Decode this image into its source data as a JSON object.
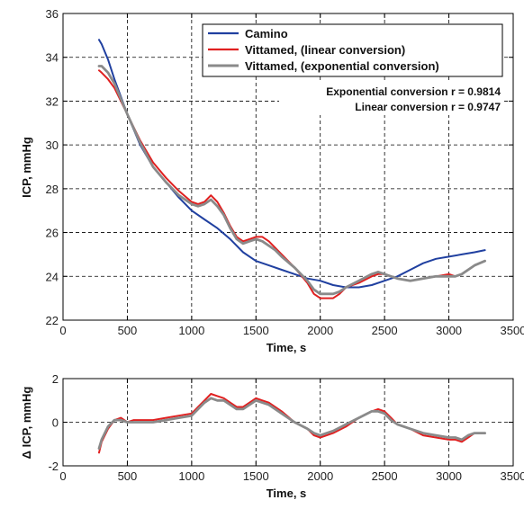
{
  "chart_data": [
    {
      "type": "line",
      "xlabel": "Time, s",
      "ylabel": "ICP, mmHg",
      "xlim": [
        0,
        3500
      ],
      "ylim": [
        22,
        36
      ],
      "xticks": [
        0,
        500,
        1000,
        1500,
        2000,
        2500,
        3000,
        3500
      ],
      "yticks": [
        22,
        24,
        26,
        28,
        30,
        32,
        34,
        36
      ],
      "grid": true,
      "legend_position": "top-right",
      "annotations": [
        "Exponential conversion r = 0.9814",
        "Linear conversion r = 0.9747"
      ],
      "series": [
        {
          "name": "Camino",
          "color": "#2040a0",
          "x": [
            280,
            300,
            350,
            400,
            450,
            500,
            600,
            700,
            800,
            900,
            1000,
            1100,
            1200,
            1300,
            1400,
            1500,
            1600,
            1700,
            1800,
            1900,
            2000,
            2100,
            2200,
            2300,
            2400,
            2500,
            2600,
            2700,
            2800,
            2900,
            3000,
            3100,
            3200,
            3280
          ],
          "y": [
            34.8,
            34.6,
            33.9,
            33.0,
            32.2,
            31.4,
            30.0,
            29.0,
            28.3,
            27.6,
            27.0,
            26.6,
            26.2,
            25.7,
            25.1,
            24.7,
            24.5,
            24.3,
            24.1,
            23.9,
            23.8,
            23.6,
            23.5,
            23.5,
            23.6,
            23.8,
            24.0,
            24.3,
            24.6,
            24.8,
            24.9,
            25.0,
            25.1,
            25.2
          ]
        },
        {
          "name": "Vittamed, (linear conversion)",
          "color": "#e02020",
          "x": [
            280,
            300,
            350,
            400,
            450,
            500,
            600,
            700,
            800,
            900,
            1000,
            1050,
            1100,
            1150,
            1200,
            1250,
            1300,
            1350,
            1400,
            1450,
            1500,
            1550,
            1600,
            1650,
            1700,
            1800,
            1900,
            1950,
            2000,
            2050,
            2100,
            2150,
            2200,
            2300,
            2400,
            2450,
            2500,
            2550,
            2600,
            2700,
            2800,
            2900,
            3000,
            3050,
            3100,
            3200,
            3280
          ],
          "y": [
            33.4,
            33.3,
            33.0,
            32.6,
            32.0,
            31.4,
            30.2,
            29.2,
            28.5,
            27.9,
            27.4,
            27.3,
            27.4,
            27.7,
            27.4,
            26.9,
            26.3,
            25.8,
            25.6,
            25.7,
            25.8,
            25.8,
            25.6,
            25.3,
            25.0,
            24.4,
            23.7,
            23.2,
            23.0,
            23.0,
            23.0,
            23.2,
            23.5,
            23.7,
            24.0,
            24.1,
            24.1,
            24.0,
            23.9,
            23.8,
            23.9,
            24.0,
            24.1,
            24.0,
            24.1,
            24.5,
            24.7
          ]
        },
        {
          "name": "Vittamed, (exponential conversion)",
          "color": "#8a8a8a",
          "x": [
            280,
            300,
            350,
            400,
            450,
            500,
            600,
            700,
            800,
            900,
            1000,
            1050,
            1100,
            1150,
            1200,
            1250,
            1300,
            1350,
            1400,
            1450,
            1500,
            1550,
            1600,
            1650,
            1700,
            1800,
            1900,
            1950,
            2000,
            2050,
            2100,
            2150,
            2200,
            2300,
            2400,
            2450,
            2500,
            2550,
            2600,
            2700,
            2800,
            2900,
            3000,
            3050,
            3100,
            3200,
            3280
          ],
          "y": [
            33.6,
            33.6,
            33.3,
            32.8,
            32.1,
            31.4,
            30.1,
            29.0,
            28.3,
            27.7,
            27.3,
            27.2,
            27.3,
            27.5,
            27.2,
            26.8,
            26.2,
            25.7,
            25.5,
            25.6,
            25.7,
            25.6,
            25.4,
            25.2,
            24.9,
            24.4,
            23.8,
            23.4,
            23.2,
            23.2,
            23.2,
            23.3,
            23.5,
            23.8,
            24.1,
            24.2,
            24.1,
            24.0,
            23.9,
            23.8,
            23.9,
            24.0,
            24.0,
            24.0,
            24.1,
            24.5,
            24.7
          ]
        }
      ]
    },
    {
      "type": "line",
      "xlabel": "Time, s",
      "ylabel": "Δ ICP, mmHg",
      "xlim": [
        0,
        3500
      ],
      "ylim": [
        -2,
        2
      ],
      "xticks": [
        0,
        500,
        1000,
        1500,
        2000,
        2500,
        3000,
        3500
      ],
      "yticks": [
        -2,
        0,
        2
      ],
      "grid": true,
      "series": [
        {
          "color": "#e02020",
          "x": [
            280,
            300,
            350,
            400,
            450,
            500,
            550,
            600,
            700,
            800,
            900,
            1000,
            1050,
            1100,
            1150,
            1200,
            1250,
            1300,
            1350,
            1400,
            1450,
            1500,
            1550,
            1600,
            1700,
            1800,
            1900,
            1950,
            2000,
            2050,
            2100,
            2200,
            2300,
            2400,
            2450,
            2500,
            2550,
            2600,
            2700,
            2800,
            2900,
            3000,
            3050,
            3100,
            3150,
            3200,
            3280
          ],
          "y": [
            -1.4,
            -0.9,
            -0.3,
            0.1,
            0.2,
            0.0,
            0.1,
            0.1,
            0.1,
            0.2,
            0.3,
            0.4,
            0.7,
            1.0,
            1.3,
            1.2,
            1.1,
            0.9,
            0.7,
            0.7,
            0.9,
            1.1,
            1.0,
            0.9,
            0.5,
            0.0,
            -0.3,
            -0.6,
            -0.7,
            -0.6,
            -0.5,
            -0.2,
            0.2,
            0.5,
            0.6,
            0.5,
            0.2,
            -0.1,
            -0.3,
            -0.6,
            -0.7,
            -0.8,
            -0.8,
            -0.9,
            -0.7,
            -0.5,
            -0.5
          ]
        },
        {
          "color": "#8a8a8a",
          "x": [
            280,
            300,
            350,
            400,
            450,
            500,
            550,
            600,
            700,
            800,
            900,
            1000,
            1050,
            1100,
            1150,
            1200,
            1250,
            1300,
            1350,
            1400,
            1450,
            1500,
            1550,
            1600,
            1700,
            1800,
            1900,
            1950,
            2000,
            2050,
            2100,
            2200,
            2300,
            2400,
            2450,
            2500,
            2550,
            2600,
            2700,
            2800,
            2900,
            3000,
            3050,
            3100,
            3150,
            3200,
            3280
          ],
          "y": [
            -1.2,
            -0.8,
            -0.2,
            0.1,
            0.1,
            0.0,
            0.0,
            0.0,
            0.0,
            0.1,
            0.2,
            0.3,
            0.6,
            0.9,
            1.1,
            1.0,
            1.0,
            0.8,
            0.6,
            0.6,
            0.8,
            1.0,
            0.9,
            0.8,
            0.4,
            0.0,
            -0.3,
            -0.5,
            -0.6,
            -0.5,
            -0.4,
            -0.1,
            0.2,
            0.5,
            0.5,
            0.4,
            0.1,
            -0.1,
            -0.3,
            -0.5,
            -0.6,
            -0.7,
            -0.7,
            -0.8,
            -0.6,
            -0.5,
            -0.5
          ]
        }
      ]
    }
  ]
}
